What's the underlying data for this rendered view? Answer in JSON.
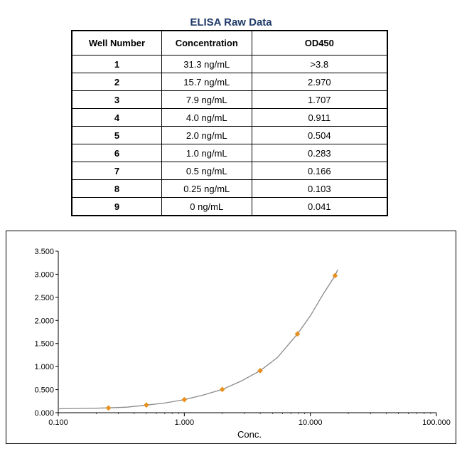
{
  "table_title": "ELISA Raw Data",
  "table": {
    "headers": [
      "Well Number",
      "Concentration",
      "OD450"
    ],
    "rows": [
      [
        "1",
        "31.3 ng/mL",
        ">3.8"
      ],
      [
        "2",
        "15.7 ng/mL",
        "2.970"
      ],
      [
        "3",
        "7.9 ng/mL",
        "1.707"
      ],
      [
        "4",
        "4.0 ng/mL",
        "0.911"
      ],
      [
        "5",
        "2.0 ng/mL",
        "0.504"
      ],
      [
        "6",
        "1.0 ng/mL",
        "0.283"
      ],
      [
        "7",
        "0.5 ng/mL",
        "0.166"
      ],
      [
        "8",
        "0.25 ng/mL",
        "0.103"
      ],
      [
        "9",
        "0 ng/mL",
        "0.041"
      ]
    ]
  },
  "chart_data": {
    "type": "scatter",
    "title": "",
    "xlabel": "Conc.",
    "ylabel": "",
    "x_scale": "log",
    "xlim": [
      0.1,
      100
    ],
    "ylim": [
      0,
      3.5
    ],
    "x_ticks": [
      "0.100",
      "1.000",
      "10.000",
      "100.000"
    ],
    "x_tick_values": [
      0.1,
      1,
      10,
      100
    ],
    "y_ticks": [
      "0.000",
      "0.500",
      "1.000",
      "1.500",
      "2.000",
      "2.500",
      "3.000",
      "3.500"
    ],
    "y_tick_values": [
      0,
      0.5,
      1,
      1.5,
      2,
      2.5,
      3,
      3.5
    ],
    "grid": false,
    "series": [
      {
        "x": [
          0.25,
          0.5,
          1.0,
          2.0,
          4.0,
          7.9,
          15.7
        ],
        "y": [
          0.103,
          0.166,
          0.283,
          0.504,
          0.911,
          1.707,
          2.97
        ]
      }
    ],
    "fit_curve": {
      "x": [
        0.1,
        0.15,
        0.2,
        0.25,
        0.35,
        0.5,
        0.7,
        1.0,
        1.4,
        2.0,
        2.8,
        4.0,
        5.5,
        7.9,
        10,
        12.5,
        15.7,
        16.5
      ],
      "y": [
        0.085,
        0.092,
        0.098,
        0.105,
        0.12,
        0.165,
        0.21,
        0.283,
        0.38,
        0.504,
        0.68,
        0.911,
        1.2,
        1.707,
        2.1,
        2.55,
        2.97,
        3.1
      ]
    },
    "colors": {
      "point": "#e8901e",
      "curve": "#8a8a8a"
    }
  }
}
